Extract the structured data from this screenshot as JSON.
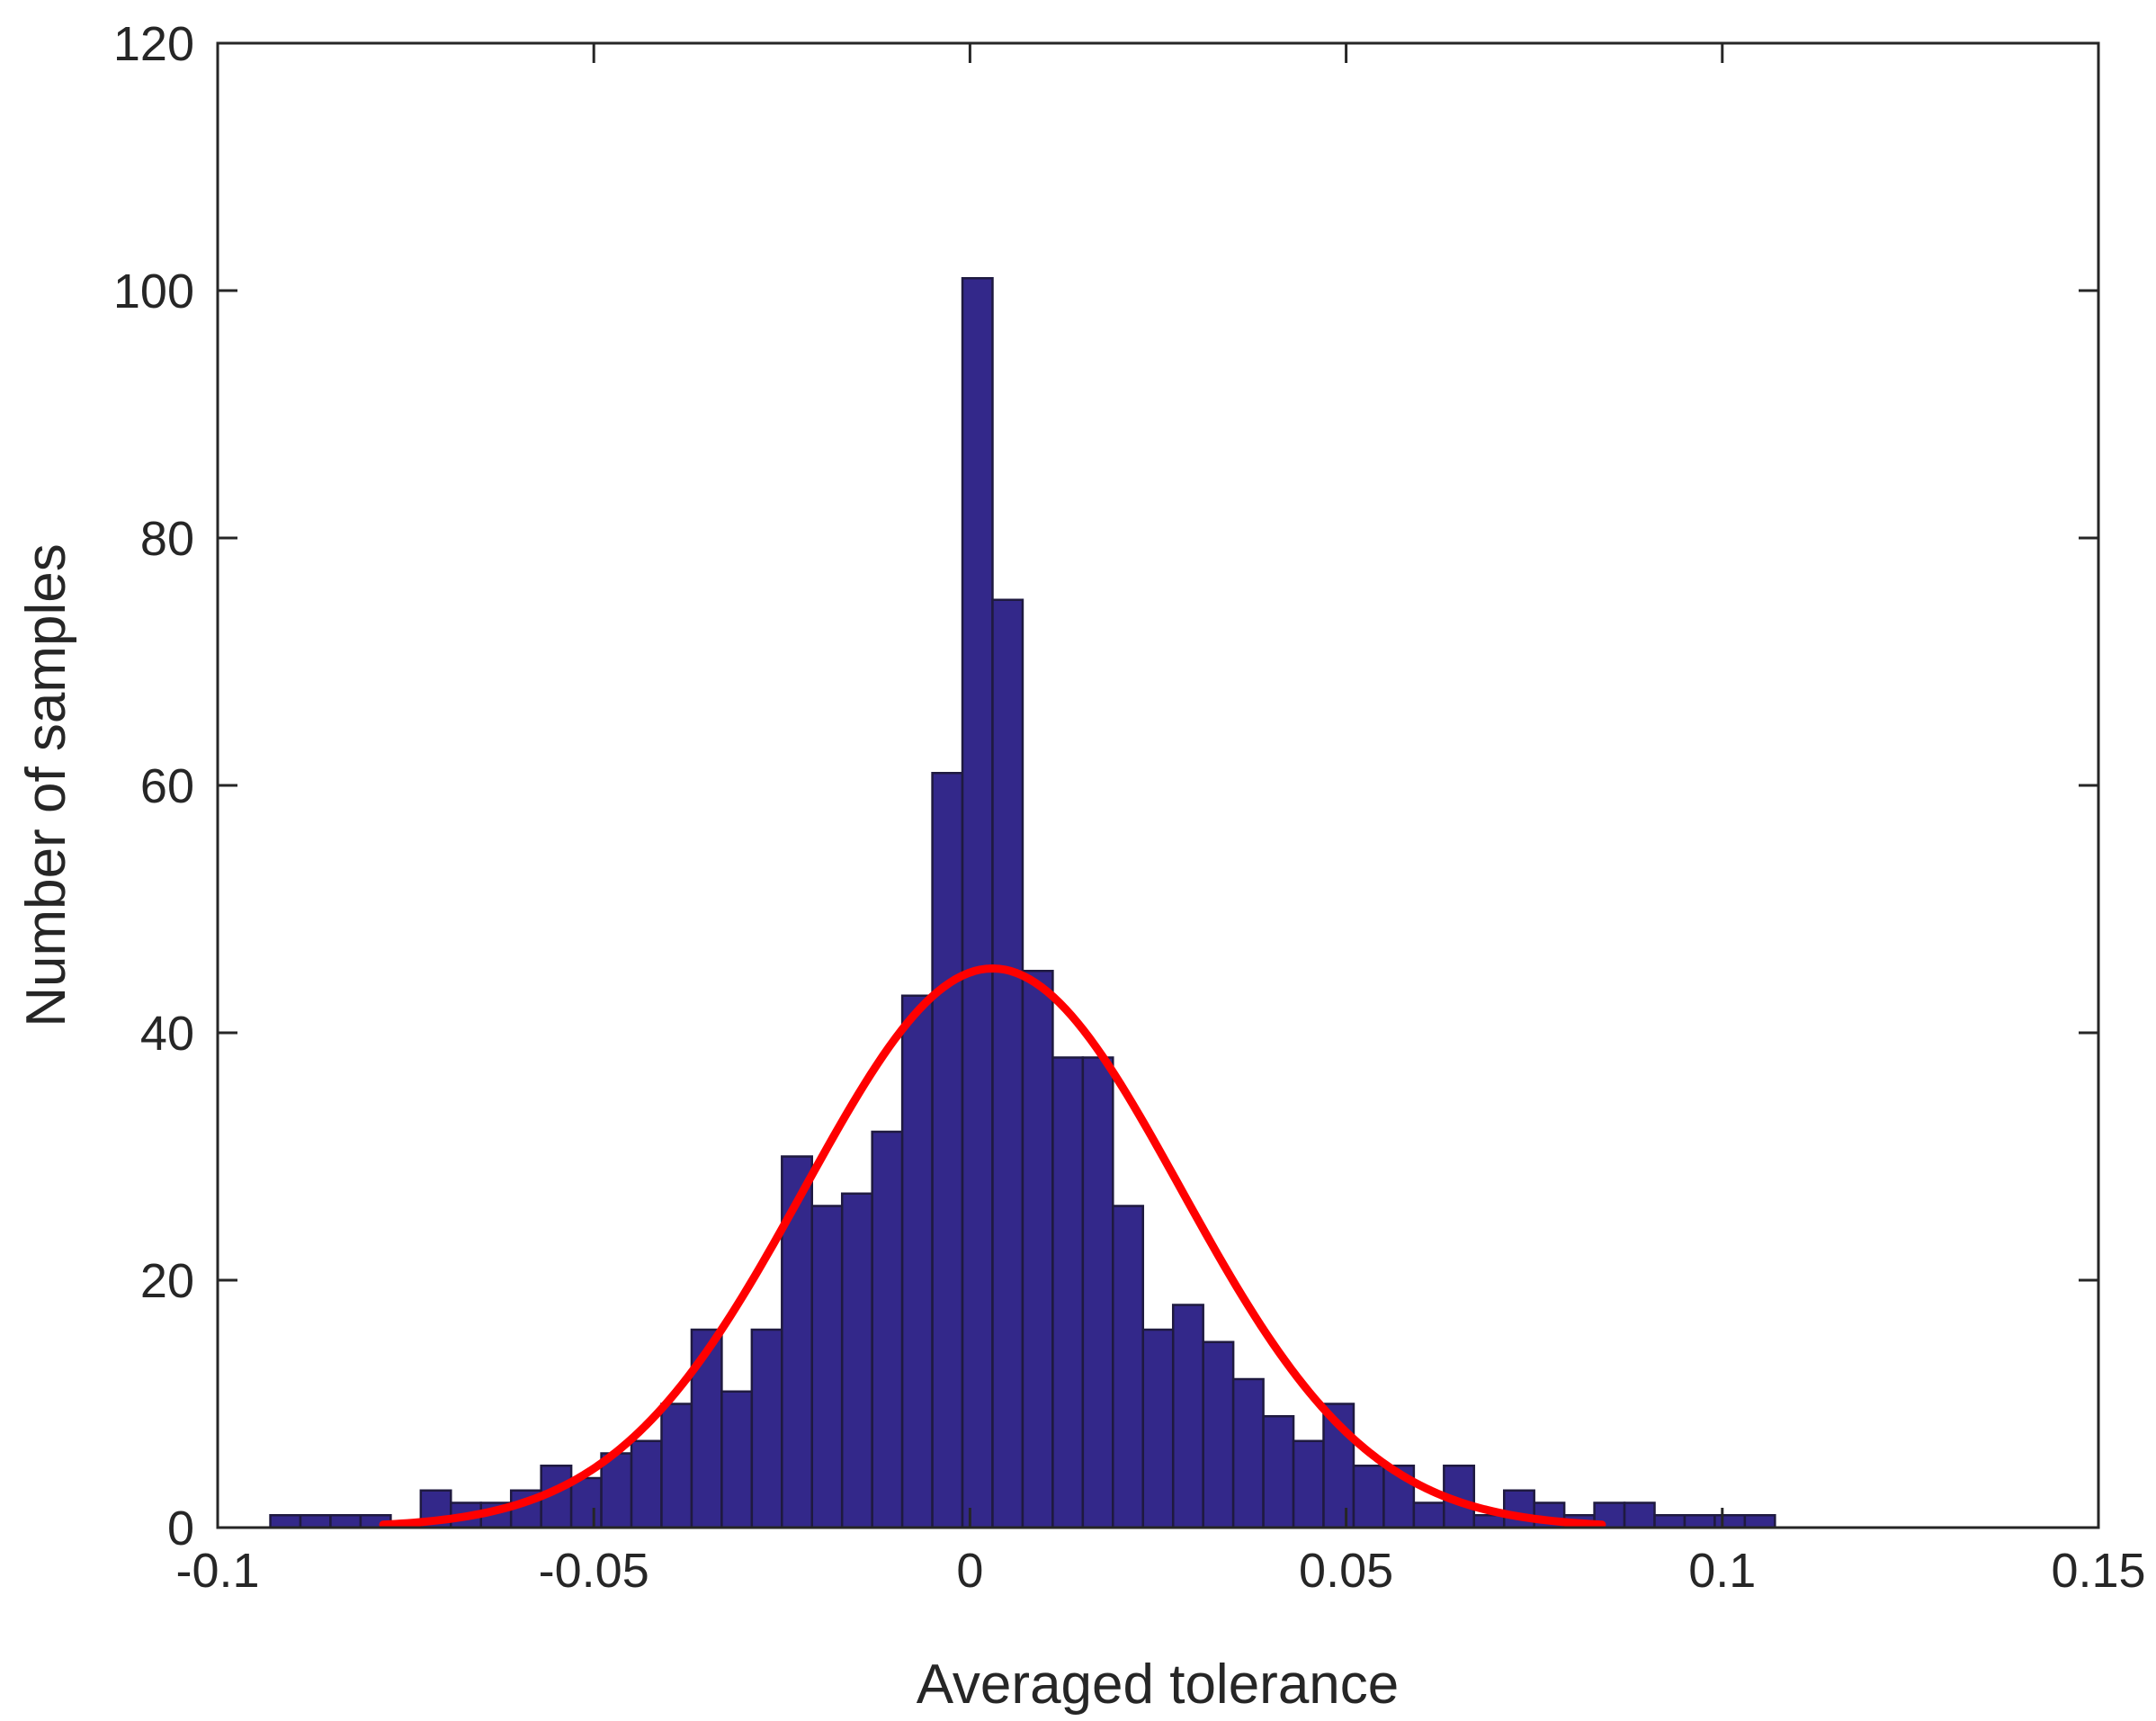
{
  "chart_data": {
    "type": "bar",
    "subtype": "histogram",
    "title": "",
    "xlabel": "Averaged tolerance",
    "ylabel": "Number of samples",
    "xlim": [
      -0.1,
      0.15
    ],
    "ylim": [
      0,
      120
    ],
    "xticks": [
      -0.1,
      -0.05,
      0,
      0.05,
      0.1,
      0.15
    ],
    "xtick_labels": [
      "-0.1",
      "-0.05",
      "0",
      "0.05",
      "0.1",
      "0.15"
    ],
    "yticks": [
      0,
      20,
      40,
      60,
      80,
      100,
      120
    ],
    "ytick_labels": [
      "0",
      "20",
      "40",
      "60",
      "80",
      "100",
      "120"
    ],
    "grid": false,
    "bin_edges_start": -0.093,
    "bin_width": 0.004,
    "bin_counts": [
      1,
      1,
      1,
      1,
      0,
      3,
      2,
      2,
      3,
      5,
      4,
      6,
      7,
      10,
      16,
      11,
      16,
      30,
      26,
      27,
      32,
      43,
      61,
      101,
      75,
      45,
      38,
      38,
      26,
      16,
      18,
      15,
      12,
      9,
      7,
      10,
      5,
      5,
      2,
      5,
      1,
      3,
      2,
      1,
      2,
      2,
      1,
      1,
      1,
      1
    ],
    "fit_curve": {
      "type": "normal",
      "mean": 0.003,
      "std": 0.025,
      "peak": 45.2,
      "x_range": [
        -0.078,
        0.084
      ]
    },
    "colors": {
      "bar_fill": "#33288A",
      "bar_edge": "#1f1a40",
      "curve": "#FF0000",
      "axes": "#262626"
    }
  }
}
